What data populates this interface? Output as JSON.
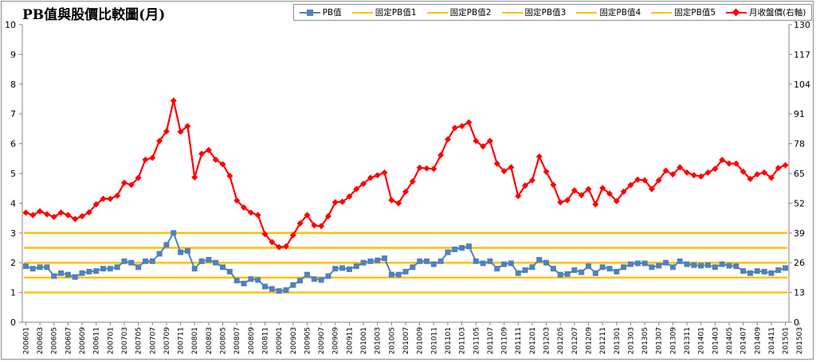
{
  "chart_data": {
    "type": "line",
    "title": "PB值與股價比較圖(月)",
    "legend_placement": "top-right",
    "grid": false,
    "ylim_left": [
      0,
      10
    ],
    "ylim_right": [
      0,
      130
    ],
    "yticks_left": [
      "0",
      "1",
      "2",
      "3",
      "4",
      "5",
      "6",
      "7",
      "8",
      "9",
      "10"
    ],
    "yticks_right": [
      "0",
      "13",
      "26",
      "39",
      "52",
      "65",
      "78",
      "91",
      "104",
      "117",
      "130"
    ],
    "x_labels": [
      "200601",
      "200603",
      "200605",
      "200607",
      "200609",
      "200611",
      "200701",
      "200703",
      "200705",
      "200707",
      "200709",
      "200711",
      "200801",
      "200803",
      "200805",
      "200807",
      "200809",
      "200811",
      "200901",
      "200903",
      "200905",
      "200907",
      "200909",
      "200911",
      "201001",
      "201003",
      "201005",
      "201007",
      "201009",
      "201011",
      "201101",
      "201103",
      "201105",
      "201107",
      "201109",
      "201111",
      "201201",
      "201203",
      "201205",
      "201207",
      "201209",
      "201211",
      "201301",
      "201303",
      "201305",
      "201307",
      "201309",
      "201311",
      "201401",
      "201403",
      "201405",
      "201407",
      "201409",
      "201411",
      "201501",
      "201503"
    ],
    "series": [
      {
        "name": "PB值",
        "color": "#4f81bd",
        "axis": "left",
        "marker": "square",
        "values": [
          1.88,
          1.8,
          1.85,
          1.85,
          1.55,
          1.65,
          1.6,
          1.52,
          1.65,
          1.7,
          1.72,
          1.8,
          1.8,
          1.85,
          2.05,
          2.0,
          1.85,
          2.05,
          2.05,
          2.3,
          2.6,
          3.0,
          2.35,
          2.4,
          1.8,
          2.05,
          2.1,
          2.0,
          1.85,
          1.7,
          1.4,
          1.3,
          1.45,
          1.42,
          1.2,
          1.12,
          1.05,
          1.08,
          1.25,
          1.4,
          1.6,
          1.45,
          1.42,
          1.55,
          1.8,
          1.82,
          1.78,
          1.88,
          2.0,
          2.05,
          2.08,
          2.15,
          1.6,
          1.6,
          1.7,
          1.85,
          2.05,
          2.05,
          1.95,
          2.05,
          2.35,
          2.45,
          2.5,
          2.55,
          2.05,
          1.98,
          2.05,
          1.8,
          1.95,
          1.98,
          1.65,
          1.75,
          1.85,
          2.1,
          2.0,
          1.8,
          1.6,
          1.62,
          1.75,
          1.68,
          1.88,
          1.65,
          1.85,
          1.8,
          1.7,
          1.85,
          1.95,
          1.98,
          1.98,
          1.85,
          1.9,
          2.0,
          1.85,
          2.05,
          1.95,
          1.92,
          1.9,
          1.92,
          1.85,
          1.95,
          1.9,
          1.88,
          1.72,
          1.65,
          1.72,
          1.7,
          1.65,
          1.75,
          1.82
        ]
      },
      {
        "name": "固定PB值1",
        "color": "#ffc000",
        "axis": "left",
        "value": 1.0
      },
      {
        "name": "固定PB值2",
        "color": "#ffc000",
        "axis": "left",
        "value": 1.5
      },
      {
        "name": "固定PB值3",
        "color": "#ffc000",
        "axis": "left",
        "value": 2.0
      },
      {
        "name": "固定PB值4",
        "color": "#ffc000",
        "axis": "left",
        "value": 2.5
      },
      {
        "name": "固定PB值5",
        "color": "#ffc000",
        "axis": "left",
        "value": 3.0
      },
      {
        "name": "月收盤價(右軸)",
        "color": "#ff0000",
        "axis": "right",
        "marker": "diamond",
        "values": [
          47.9,
          46.8,
          48.5,
          47.2,
          46.0,
          47.9,
          46.8,
          45.1,
          46.3,
          48.0,
          51.5,
          53.9,
          53.9,
          55.3,
          60.9,
          60.0,
          63.1,
          71.0,
          71.8,
          79.2,
          83.4,
          96.8,
          83.2,
          85.7,
          63.3,
          73.6,
          75.2,
          71.0,
          69.0,
          63.9,
          53.2,
          50.1,
          47.9,
          46.8,
          38.5,
          35.0,
          32.8,
          33.1,
          38.0,
          43.2,
          46.8,
          42.3,
          42.0,
          46.3,
          52.4,
          52.6,
          54.9,
          58.2,
          60.5,
          63.1,
          64.2,
          65.4,
          53.3,
          52.0,
          57.0,
          61.5,
          67.5,
          67.2,
          67.0,
          73.0,
          79.9,
          84.9,
          85.7,
          87.3,
          79.2,
          76.8,
          79.2,
          69.3,
          66.0,
          67.7,
          55.1,
          59.7,
          62.0,
          72.4,
          65.8,
          60.0,
          52.4,
          53.3,
          57.6,
          55.5,
          58.2,
          51.5,
          58.6,
          56.2,
          52.9,
          57.0,
          59.9,
          62.3,
          62.0,
          58.2,
          62.0,
          66.2,
          64.6,
          67.7,
          65.4,
          64.2,
          63.7,
          65.4,
          67.0,
          70.9,
          69.3,
          69.3,
          65.8,
          62.6,
          64.6,
          65.4,
          63.1,
          67.4,
          68.6
        ]
      }
    ]
  }
}
